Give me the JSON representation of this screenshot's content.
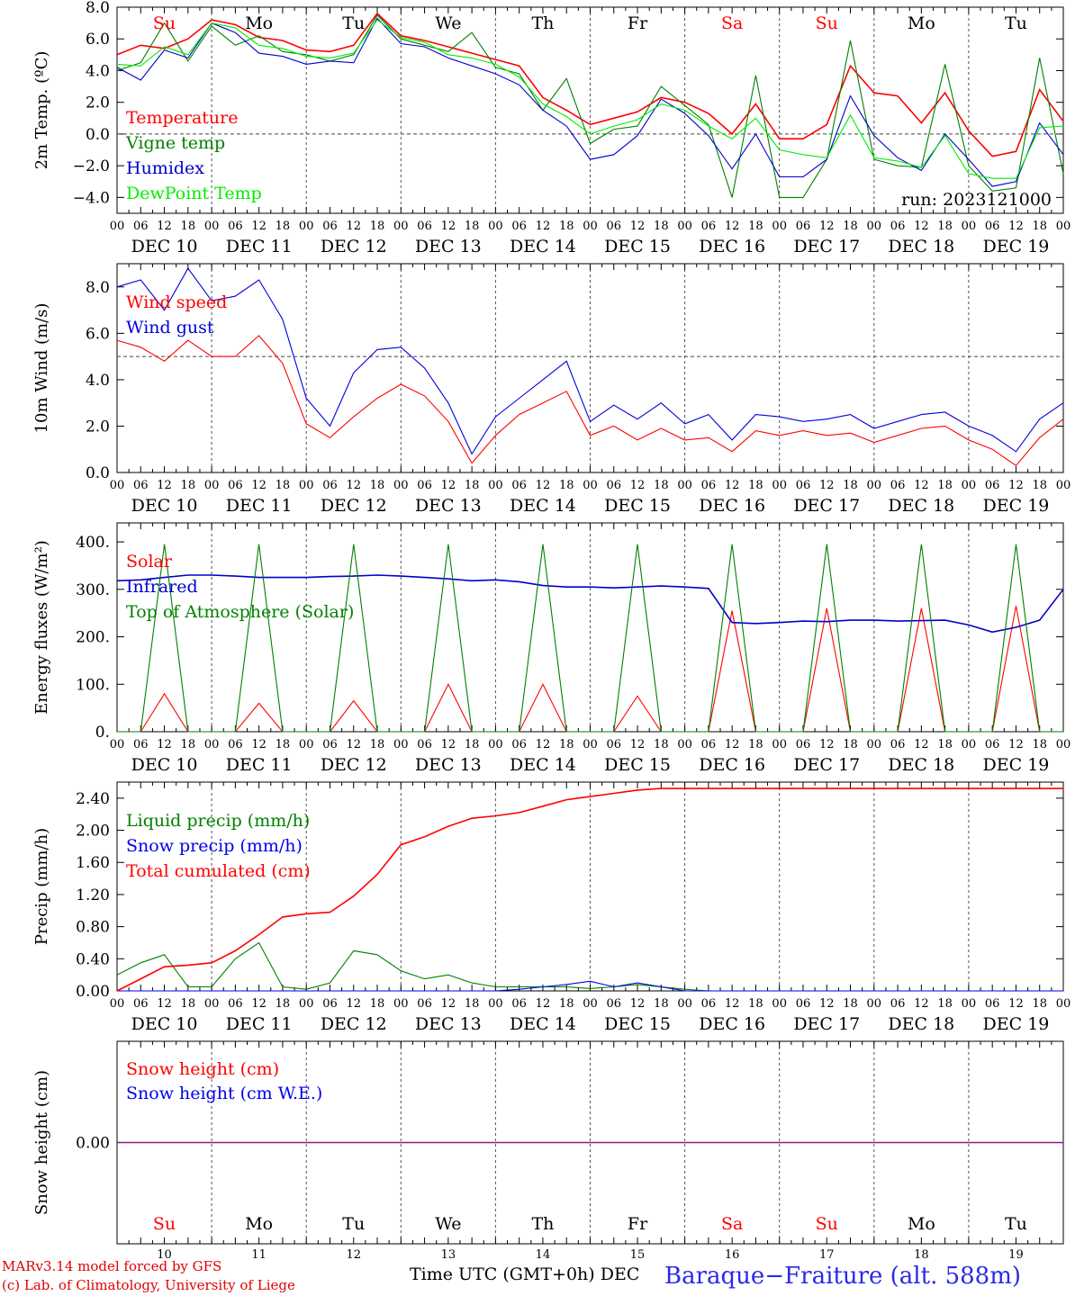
{
  "chart_data": [
    {
      "type": "line",
      "ylabel": "2m Temp. (ºC)",
      "ylim": [
        -5,
        8
      ],
      "yticks": [
        "8.0",
        "6.0",
        "4.0",
        "2.0",
        "0.0",
        "−2.0",
        "−4.0"
      ],
      "reference_line": 0,
      "run_label": "run: 2023121000",
      "x": [
        0,
        6,
        12,
        18,
        24,
        30,
        36,
        42,
        48,
        54,
        60,
        66,
        72,
        78,
        84,
        90,
        96,
        102,
        108,
        114,
        120,
        126,
        132,
        138,
        144,
        150,
        156,
        162,
        168,
        174,
        180,
        186,
        192,
        198,
        204,
        210,
        216,
        222,
        228,
        234,
        240
      ],
      "series": [
        {
          "name": "Temperature",
          "color": "#ff0000",
          "values": [
            5.0,
            5.6,
            5.4,
            6.0,
            7.2,
            6.9,
            6.1,
            5.9,
            5.3,
            5.2,
            5.6,
            7.6,
            6.2,
            5.9,
            5.5,
            5.1,
            4.7,
            4.3,
            2.3,
            1.5,
            0.6,
            1.0,
            1.4,
            2.3,
            2.0,
            1.3,
            0.0,
            1.9,
            -0.3,
            -0.3,
            0.6,
            4.3,
            2.6,
            2.4,
            0.7,
            2.6,
            0.2,
            -1.4,
            -1.1,
            2.8,
            0.8
          ]
        },
        {
          "name": "Vigne temp",
          "color": "#008000",
          "values": [
            4.0,
            4.5,
            7.0,
            4.6,
            6.8,
            5.6,
            6.2,
            5.2,
            5.0,
            4.6,
            5.0,
            7.5,
            6.0,
            5.6,
            5.2,
            6.4,
            4.2,
            3.8,
            1.5,
            3.5,
            -0.6,
            0.3,
            0.5,
            3.0,
            1.8,
            0.6,
            -4.0,
            3.7,
            -4.0,
            -4.0,
            -1.6,
            5.9,
            -1.6,
            -2.0,
            -2.1,
            4.4,
            -2.0,
            -3.6,
            -3.4,
            4.8,
            -2.5
          ]
        },
        {
          "name": "Humidex",
          "color": "#0000cc",
          "values": [
            4.2,
            3.4,
            5.3,
            4.8,
            7.0,
            6.4,
            5.1,
            4.9,
            4.4,
            4.6,
            4.5,
            7.3,
            5.7,
            5.5,
            4.8,
            4.3,
            3.8,
            3.1,
            1.5,
            0.5,
            -1.6,
            -1.3,
            -0.1,
            2.2,
            1.3,
            -0.1,
            -2.2,
            0.0,
            -2.7,
            -2.7,
            -1.6,
            2.4,
            -0.1,
            -1.5,
            -2.3,
            0.0,
            -1.6,
            -3.3,
            -3.0,
            0.7,
            -1.3
          ]
        },
        {
          "name": "DewPoint Temp",
          "color": "#00ee00",
          "values": [
            4.4,
            4.3,
            5.5,
            5.0,
            7.0,
            6.7,
            5.6,
            5.4,
            4.9,
            4.8,
            5.1,
            7.2,
            6.1,
            5.8,
            5.0,
            4.8,
            4.4,
            3.6,
            1.9,
            1.1,
            0.0,
            0.5,
            0.9,
            1.9,
            1.5,
            0.5,
            -0.3,
            1.0,
            -1.0,
            -1.3,
            -1.5,
            1.2,
            -1.5,
            -1.7,
            -2.1,
            -0.1,
            -2.5,
            -2.8,
            -2.8,
            0.4,
            0.5
          ]
        }
      ]
    },
    {
      "type": "line",
      "ylabel": "10m Wind (m/s)",
      "ylim": [
        0,
        9
      ],
      "yticks": [
        "8.0",
        "6.0",
        "4.0",
        "2.0",
        "0.0"
      ],
      "reference_line": 5,
      "x": [
        0,
        6,
        12,
        18,
        24,
        30,
        36,
        42,
        48,
        54,
        60,
        66,
        72,
        78,
        84,
        90,
        96,
        102,
        108,
        114,
        120,
        126,
        132,
        138,
        144,
        150,
        156,
        162,
        168,
        174,
        180,
        186,
        192,
        198,
        204,
        210,
        216,
        222,
        228,
        234,
        240
      ],
      "series": [
        {
          "name": "Wind speed",
          "color": "#ff0000",
          "values": [
            5.7,
            5.4,
            4.8,
            5.7,
            5.0,
            5.0,
            5.9,
            4.7,
            2.1,
            1.5,
            2.4,
            3.2,
            3.8,
            3.3,
            2.2,
            0.4,
            1.6,
            2.5,
            3.0,
            3.5,
            1.6,
            2.0,
            1.4,
            1.9,
            1.4,
            1.5,
            0.9,
            1.8,
            1.6,
            1.8,
            1.6,
            1.7,
            1.3,
            1.6,
            1.9,
            2.0,
            1.4,
            1.0,
            0.3,
            1.5,
            2.3
          ]
        },
        {
          "name": "Wind gust",
          "color": "#0000dd",
          "values": [
            8.0,
            8.3,
            7.0,
            8.8,
            7.4,
            7.6,
            8.3,
            6.6,
            3.2,
            2.0,
            4.3,
            5.3,
            5.4,
            4.5,
            3.0,
            0.8,
            2.4,
            3.2,
            4.0,
            4.8,
            2.2,
            2.9,
            2.3,
            3.0,
            2.1,
            2.5,
            1.4,
            2.5,
            2.4,
            2.2,
            2.3,
            2.5,
            1.9,
            2.2,
            2.5,
            2.6,
            2.0,
            1.6,
            0.9,
            2.3,
            3.0
          ]
        }
      ]
    },
    {
      "type": "line",
      "ylabel": "Energy fluxes (W/m²)",
      "ylim": [
        0,
        440
      ],
      "yticks": [
        "400.",
        "300.",
        "200.",
        "100.",
        "0."
      ],
      "x": [
        0,
        6,
        12,
        18,
        24,
        30,
        36,
        42,
        48,
        54,
        60,
        66,
        72,
        78,
        84,
        90,
        96,
        102,
        108,
        114,
        120,
        126,
        132,
        138,
        144,
        150,
        156,
        162,
        168,
        174,
        180,
        186,
        192,
        198,
        204,
        210,
        216,
        222,
        228,
        234,
        240
      ],
      "series": [
        {
          "name": "Solar",
          "color": "#ff0000",
          "values": [
            0,
            0,
            80,
            0,
            0,
            0,
            60,
            0,
            0,
            0,
            65,
            0,
            0,
            0,
            100,
            0,
            0,
            0,
            100,
            0,
            0,
            0,
            75,
            0,
            0,
            0,
            255,
            0,
            0,
            0,
            260,
            0,
            0,
            0,
            260,
            0,
            0,
            0,
            265,
            0,
            0
          ]
        },
        {
          "name": "Infrared",
          "color": "#0000cc",
          "values": [
            318,
            320,
            325,
            330,
            330,
            328,
            325,
            325,
            325,
            327,
            328,
            330,
            328,
            325,
            322,
            318,
            320,
            316,
            308,
            305,
            305,
            303,
            305,
            307,
            305,
            302,
            230,
            228,
            230,
            233,
            232,
            235,
            235,
            233,
            234,
            235,
            225,
            210,
            220,
            235,
            300
          ]
        },
        {
          "name": "Top of Atmosphere (Solar)",
          "color": "#008000",
          "values": [
            0,
            0,
            395,
            0,
            0,
            0,
            395,
            0,
            0,
            0,
            395,
            0,
            0,
            0,
            395,
            0,
            0,
            0,
            395,
            0,
            0,
            0,
            395,
            0,
            0,
            0,
            395,
            0,
            0,
            0,
            395,
            0,
            0,
            0,
            395,
            0,
            0,
            0,
            395,
            0,
            0
          ]
        }
      ]
    },
    {
      "type": "line",
      "ylabel": "Precip (mm/h)",
      "ylim": [
        0,
        2.6
      ],
      "yticks": [
        "2.40",
        "2.00",
        "1.60",
        "1.20",
        "0.80",
        "0.40",
        "0.00"
      ],
      "x": [
        0,
        6,
        12,
        18,
        24,
        30,
        36,
        42,
        48,
        54,
        60,
        66,
        72,
        78,
        84,
        90,
        96,
        102,
        108,
        114,
        120,
        126,
        132,
        138,
        144,
        150,
        156,
        162,
        168,
        174,
        180,
        186,
        192,
        198,
        204,
        210,
        216,
        222,
        228,
        234,
        240
      ],
      "series": [
        {
          "name": "Liquid precip (mm/h)",
          "color": "#008000",
          "values": [
            0.2,
            0.35,
            0.45,
            0.05,
            0.05,
            0.4,
            0.6,
            0.05,
            0.02,
            0.1,
            0.5,
            0.45,
            0.25,
            0.15,
            0.2,
            0.1,
            0.05,
            0.05,
            0.05,
            0.05,
            0.03,
            0.05,
            0.08,
            0.05,
            0.02,
            0.0,
            0.0,
            0.0,
            0.0,
            0.0,
            0.0,
            0.0,
            0.0,
            0.0,
            0.0,
            0.0,
            0.0,
            0.0,
            0.0,
            0.0,
            0.0
          ]
        },
        {
          "name": "Snow precip (mm/h)",
          "color": "#0000ee",
          "values": [
            0.0,
            0.0,
            0.0,
            0.0,
            0.0,
            0.0,
            0.0,
            0.0,
            0.0,
            0.0,
            0.0,
            0.0,
            0.0,
            0.0,
            0.0,
            0.0,
            0.0,
            0.02,
            0.05,
            0.08,
            0.12,
            0.05,
            0.1,
            0.05,
            0.0,
            0.0,
            0.0,
            0.0,
            0.0,
            0.0,
            0.0,
            0.0,
            0.0,
            0.0,
            0.0,
            0.0,
            0.0,
            0.0,
            0.0,
            0.0,
            0.0
          ]
        },
        {
          "name": "Total cumulated (cm)",
          "color": "#ff0000",
          "values": [
            0.0,
            0.15,
            0.3,
            0.32,
            0.35,
            0.5,
            0.7,
            0.92,
            0.96,
            0.98,
            1.18,
            1.45,
            1.82,
            1.92,
            2.05,
            2.15,
            2.18,
            2.22,
            2.3,
            2.38,
            2.42,
            2.46,
            2.5,
            2.52,
            2.52,
            2.52,
            2.52,
            2.52,
            2.52,
            2.52,
            2.52,
            2.52,
            2.52,
            2.52,
            2.52,
            2.52,
            2.52,
            2.52,
            2.52,
            2.52,
            2.52
          ]
        }
      ]
    },
    {
      "type": "line",
      "ylabel": "Snow height (cm)",
      "ylim": [
        -1,
        1
      ],
      "yticks": [
        "0.00"
      ],
      "x": [
        0,
        240
      ],
      "series": [
        {
          "name": "Snow height (cm)",
          "color": "#ff0000",
          "values": [
            0,
            0
          ]
        },
        {
          "name": "Snow height (cm W.E.)",
          "color": "#0000ee",
          "values": [
            0,
            0
          ]
        }
      ]
    }
  ],
  "x_axis": {
    "hour_ticks": [
      "00",
      "06",
      "12",
      "18"
    ],
    "end_tick": "00",
    "date_labels": [
      "DEC 10",
      "DEC 11",
      "DEC 12",
      "DEC 13",
      "DEC 14",
      "DEC 15",
      "DEC 16",
      "DEC 17",
      "DEC 18",
      "DEC 19"
    ],
    "weekdays": [
      "Su",
      "Mo",
      "Tu",
      "We",
      "Th",
      "Fr",
      "Sa",
      "Su",
      "Mo",
      "Tu"
    ],
    "weekday_colors": [
      "#ff0000",
      "#000000",
      "#000000",
      "#000000",
      "#000000",
      "#000000",
      "#ff0000",
      "#ff0000",
      "#000000",
      "#000000"
    ],
    "day_numbers": [
      "10",
      "11",
      "12",
      "13",
      "14",
      "15",
      "16",
      "17",
      "18",
      "19"
    ],
    "title": "Time UTC (GMT+0h)",
    "month": "DEC"
  },
  "footer": {
    "credit_line1": "MARv3.14 model forced by GFS",
    "credit_line2": "(c) Lab. of Climatology, University of Liege",
    "station": "Baraque−Fraiture (alt. 588m)"
  }
}
